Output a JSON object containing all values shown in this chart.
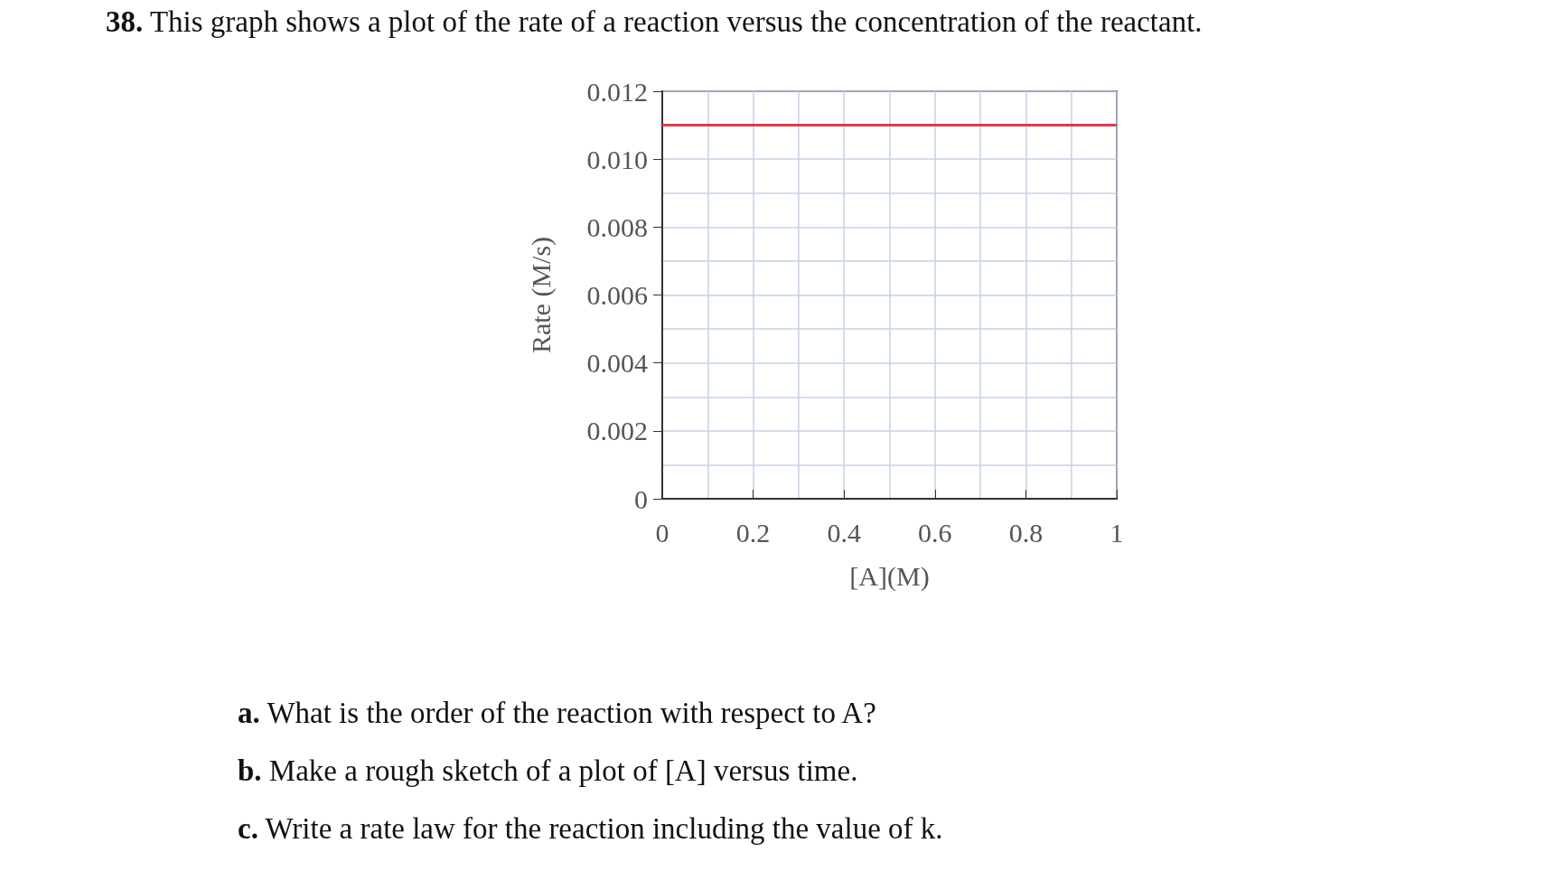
{
  "chart_data": {
    "type": "line",
    "title": "38. This graph shows a plot of the rate of a reaction versus the concentration of the reactant.",
    "xlabel": "[A](M)",
    "ylabel": "Rate (M/s)",
    "x": [
      0,
      1
    ],
    "series": [
      {
        "color": "#e8364a",
        "values": [
          0.011,
          0.011
        ]
      }
    ],
    "xlim": [
      0,
      1
    ],
    "xticks": [
      0,
      0.2,
      0.4,
      0.6,
      0.8,
      1
    ],
    "ylim": [
      0,
      0.012
    ],
    "yticks": [
      0,
      0.002,
      0.004,
      0.006,
      0.008,
      {
        "value": 0.01,
        "label": "0.010"
      },
      0.012
    ],
    "grid": true,
    "marker": "none",
    "line_style": "solid",
    "annotations": [
      "a. What is the order of the reaction with respect to A?",
      "b. Make a rough sketch of a plot of [A] versus time.",
      "c. Write a rate law for the reaction including the value of k."
    ]
  }
}
